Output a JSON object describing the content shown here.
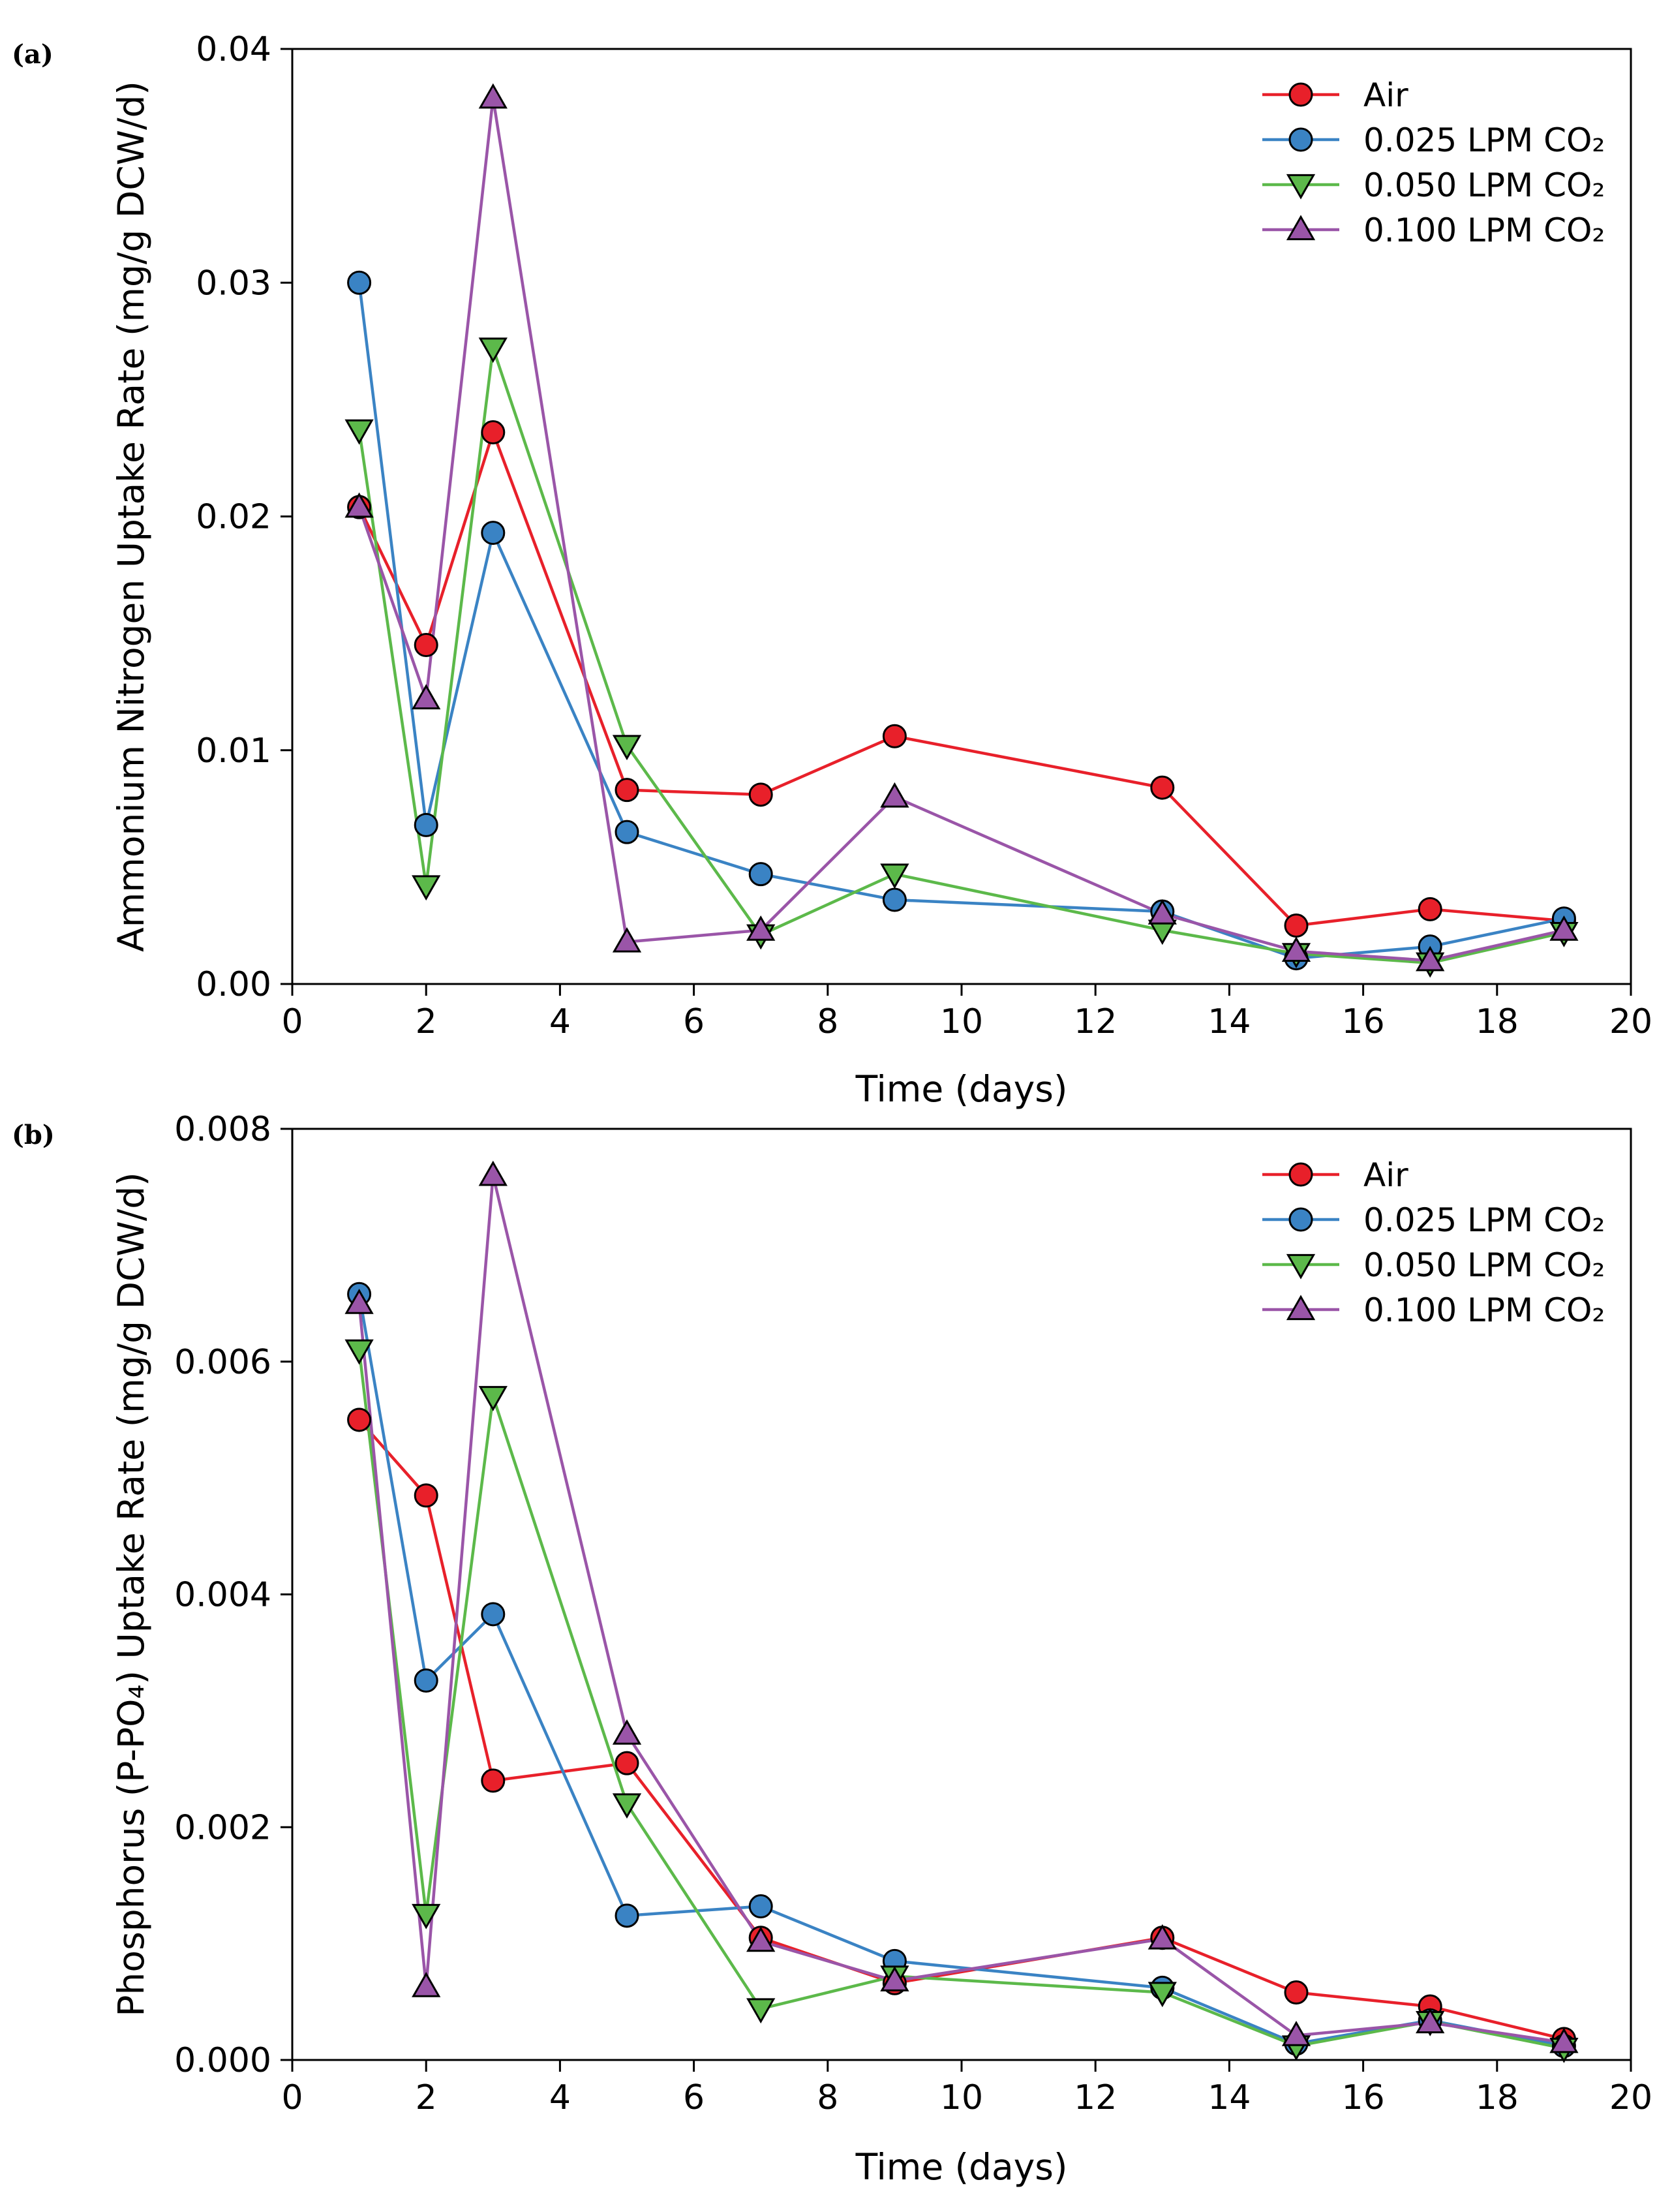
{
  "figure_labels": {
    "panel_a": "(a)",
    "panel_b": "(b)"
  },
  "colors": {
    "air": "#e8202a",
    "co2_025": "#3a83c4",
    "co2_050": "#5cb94a",
    "co2_100": "#9a55a8",
    "axis": "#000000"
  },
  "chart_data": [
    {
      "type": "line",
      "panel": "(a)",
      "title": "",
      "xlabel": "Time (days)",
      "ylabel": "Ammonium Nitrogen Uptake Rate (mg/g DCW/d)",
      "xlim": [
        0,
        20
      ],
      "ylim": [
        0,
        0.04
      ],
      "xticks": [
        "0",
        "2",
        "4",
        "6",
        "8",
        "10",
        "12",
        "14",
        "16",
        "18",
        "20"
      ],
      "yticks": [
        "0.00",
        "0.01",
        "0.02",
        "0.03",
        "0.04"
      ],
      "legend_position": "top-right",
      "x": [
        1,
        2,
        3,
        5,
        7,
        9,
        13,
        15,
        17,
        19
      ],
      "series": [
        {
          "name": "Air",
          "color": "#e8202a",
          "marker": "circle",
          "values": [
            0.0204,
            0.0145,
            0.0236,
            0.0083,
            0.0081,
            0.0106,
            0.0084,
            0.0025,
            0.0032,
            0.0027
          ]
        },
        {
          "name": "0.025 LPM CO₂",
          "color": "#3a83c4",
          "marker": "circle",
          "values": [
            0.03,
            0.0068,
            0.0193,
            0.0065,
            0.0047,
            0.0036,
            0.0031,
            0.0011,
            0.0016,
            0.0028
          ]
        },
        {
          "name": "0.050 LPM CO₂",
          "color": "#5cb94a",
          "marker": "triangle-down",
          "values": [
            0.0237,
            0.0042,
            0.0272,
            0.0102,
            0.0021,
            0.0047,
            0.0023,
            0.0013,
            0.0009,
            0.0022
          ]
        },
        {
          "name": "0.100 LPM CO₂",
          "color": "#9a55a8",
          "marker": "triangle-up",
          "values": [
            0.0204,
            0.0122,
            0.0379,
            0.0018,
            0.0023,
            0.008,
            0.003,
            0.0014,
            0.001,
            0.0023
          ]
        }
      ]
    },
    {
      "type": "line",
      "panel": "(b)",
      "title": "",
      "xlabel": "Time (days)",
      "ylabel": "Phosphorus (P-PO₄) Uptake Rate (mg/g DCW/d)",
      "xlim": [
        0,
        20
      ],
      "ylim": [
        0,
        0.008
      ],
      "xticks": [
        "0",
        "2",
        "4",
        "6",
        "8",
        "10",
        "12",
        "14",
        "16",
        "18",
        "20"
      ],
      "yticks": [
        "0.000",
        "0.002",
        "0.004",
        "0.006",
        "0.008"
      ],
      "legend_position": "top-right",
      "x": [
        1,
        2,
        3,
        5,
        7,
        9,
        13,
        15,
        17,
        19
      ],
      "series": [
        {
          "name": "Air",
          "color": "#e8202a",
          "marker": "circle",
          "values": [
            0.0055,
            0.00485,
            0.0024,
            0.00255,
            0.00105,
            0.00066,
            0.00105,
            0.00058,
            0.00046,
            0.00018
          ]
        },
        {
          "name": "0.025 LPM CO₂",
          "color": "#3a83c4",
          "marker": "circle",
          "values": [
            0.00658,
            0.00326,
            0.00383,
            0.00124,
            0.00132,
            0.00085,
            0.00062,
            0.00014,
            0.00034,
            0.00012
          ]
        },
        {
          "name": "0.050 LPM CO₂",
          "color": "#5cb94a",
          "marker": "triangle-down",
          "values": [
            0.0061,
            0.00125,
            0.0057,
            0.0022,
            0.00044,
            0.00072,
            0.00058,
            0.00012,
            0.00033,
            0.0001
          ]
        },
        {
          "name": "0.100 LPM CO₂",
          "color": "#9a55a8",
          "marker": "triangle-up",
          "values": [
            0.0065,
            0.00063,
            0.0076,
            0.0028,
            0.00102,
            0.00068,
            0.00104,
            0.00021,
            0.00032,
            0.00015
          ]
        }
      ]
    }
  ]
}
